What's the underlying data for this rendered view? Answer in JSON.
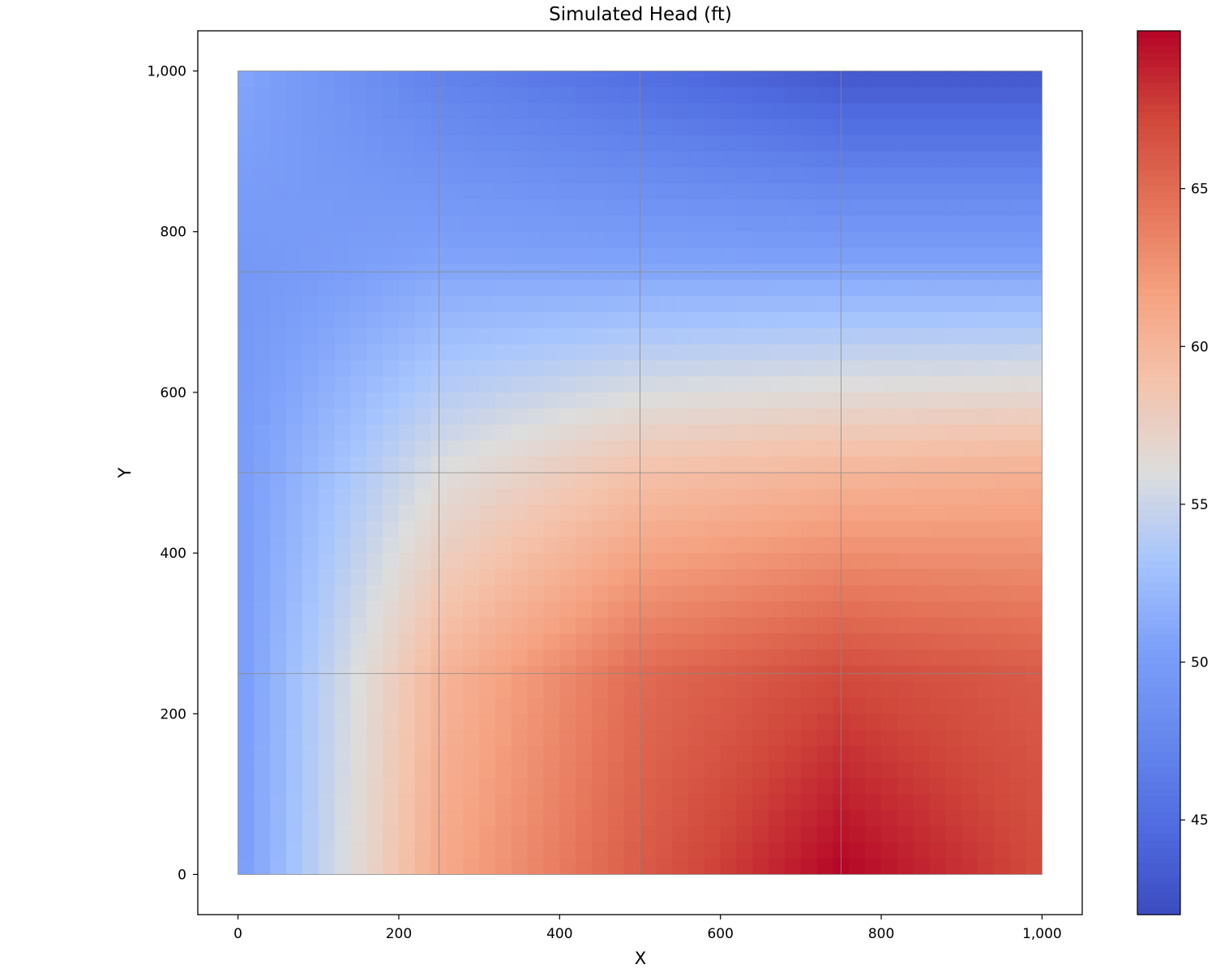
{
  "chart_data": {
    "type": "heatmap",
    "title": "Simulated Head (ft)",
    "xlabel": "X",
    "ylabel": "Y",
    "xlim": [
      -50,
      1050
    ],
    "ylim": [
      -50,
      1050
    ],
    "extent": {
      "x": [
        0,
        1000
      ],
      "y": [
        0,
        1000
      ]
    },
    "x_ticks": [
      0,
      200,
      400,
      600,
      800,
      1000
    ],
    "x_tick_labels": [
      "0",
      "200",
      "400",
      "600",
      "800",
      "1,000"
    ],
    "y_ticks": [
      0,
      200,
      400,
      600,
      800,
      1000
    ],
    "y_tick_labels": [
      "0",
      "200",
      "400",
      "600",
      "800",
      "1,000"
    ],
    "grid_lines": {
      "x": [
        250,
        500,
        750
      ],
      "y": [
        250,
        500,
        750
      ]
    },
    "colormap": "coolwarm",
    "colorbar": {
      "range": [
        42,
        70
      ],
      "ticks": [
        45,
        50,
        55,
        60,
        65
      ],
      "tick_labels": [
        "45",
        "50",
        "55",
        "60",
        "65"
      ]
    },
    "field_points": [
      {
        "x": 0,
        "y": 1000,
        "value": 51
      },
      {
        "x": 250,
        "y": 1000,
        "value": 47
      },
      {
        "x": 500,
        "y": 1000,
        "value": 45
      },
      {
        "x": 750,
        "y": 1000,
        "value": 43
      },
      {
        "x": 1000,
        "y": 1000,
        "value": 43
      },
      {
        "x": 0,
        "y": 750,
        "value": 49.5
      },
      {
        "x": 250,
        "y": 750,
        "value": 51
      },
      {
        "x": 500,
        "y": 750,
        "value": 51
      },
      {
        "x": 750,
        "y": 750,
        "value": 51
      },
      {
        "x": 1000,
        "y": 750,
        "value": 51
      },
      {
        "x": 0,
        "y": 500,
        "value": 50
      },
      {
        "x": 250,
        "y": 500,
        "value": 56
      },
      {
        "x": 500,
        "y": 500,
        "value": 59
      },
      {
        "x": 750,
        "y": 500,
        "value": 60
      },
      {
        "x": 1000,
        "y": 500,
        "value": 60.5
      },
      {
        "x": 0,
        "y": 250,
        "value": 50
      },
      {
        "x": 250,
        "y": 250,
        "value": 60
      },
      {
        "x": 500,
        "y": 250,
        "value": 65
      },
      {
        "x": 750,
        "y": 250,
        "value": 67
      },
      {
        "x": 1000,
        "y": 250,
        "value": 66
      },
      {
        "x": 0,
        "y": 0,
        "value": 50
      },
      {
        "x": 250,
        "y": 0,
        "value": 61
      },
      {
        "x": 500,
        "y": 0,
        "value": 66
      },
      {
        "x": 750,
        "y": 0,
        "value": 70
      },
      {
        "x": 1000,
        "y": 0,
        "value": 67
      }
    ]
  }
}
